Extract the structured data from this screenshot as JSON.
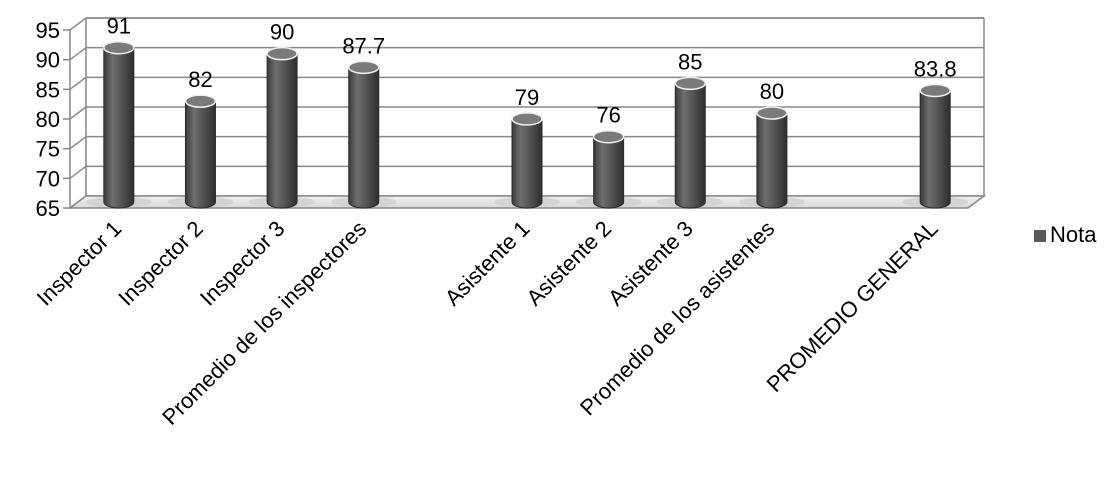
{
  "chart_data": {
    "type": "bar",
    "categories": [
      "Inspector 1",
      "Inspector 2",
      "Inspector 3",
      "Promedio de los inspectores",
      "",
      "Asistente 1",
      "Asistente 2",
      "Asistente 3",
      "Promedio de los asistentes",
      "",
      "PROMEDIO GENERAL"
    ],
    "series": [
      {
        "name": "Nota",
        "values": [
          91,
          82,
          90,
          87.7,
          null,
          79,
          76,
          85,
          80,
          null,
          83.8
        ],
        "labels": [
          "91",
          "82",
          "90",
          "87.7",
          "",
          "79",
          "76",
          "85",
          "80",
          "",
          "83.8"
        ],
        "color": "#5a5a5a"
      }
    ],
    "y_ticks": [
      "65",
      "70",
      "75",
      "80",
      "85",
      "90",
      "95"
    ],
    "ylim": [
      65,
      95
    ],
    "grid": true,
    "legend_position": "right",
    "three_d": true
  }
}
